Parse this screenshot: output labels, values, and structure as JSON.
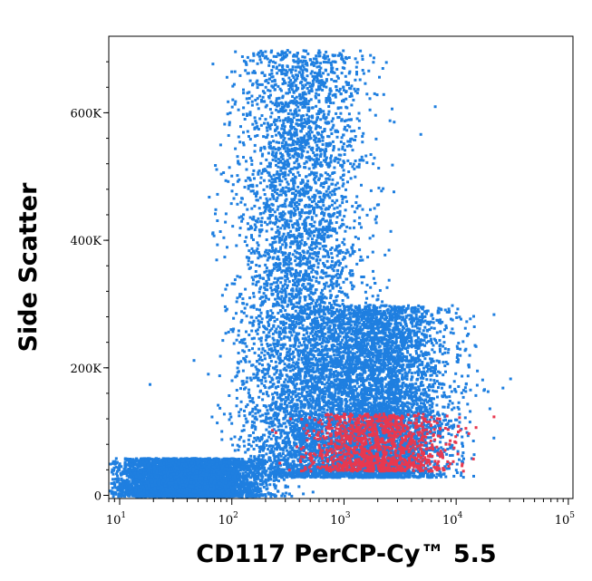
{
  "chart_data": {
    "type": "scatter",
    "title": "",
    "xlabel": "CD117 PerCP-Cy™ 5.5",
    "ylabel": "Side Scatter",
    "x_scale": "log",
    "xlim": [
      8,
      110000
    ],
    "ylim": [
      -5000,
      720000
    ],
    "x_ticks": [
      {
        "base": "10",
        "exp": "1",
        "value": 10
      },
      {
        "base": "10",
        "exp": "2",
        "value": 100
      },
      {
        "base": "10",
        "exp": "3",
        "value": 1000
      },
      {
        "base": "10",
        "exp": "4",
        "value": 10000
      },
      {
        "base": "10",
        "exp": "5",
        "value": 100000
      }
    ],
    "y_ticks": [
      {
        "label": "0",
        "value": 0
      },
      {
        "label": "200K",
        "value": 200000
      },
      {
        "label": "400K",
        "value": 400000
      },
      {
        "label": "600K",
        "value": 600000
      }
    ],
    "grid": false,
    "colors": {
      "main_population": "#1f7fe0",
      "gated_population": "#e8384f"
    },
    "series": [
      {
        "population": "main",
        "color": "#1f7fe0",
        "regions": [
          {
            "x_range": [
              60,
              900
            ],
            "y_range": [
              30000,
              700000
            ],
            "x_peak": 400,
            "description_level": "dense"
          },
          {
            "x_range": [
              300,
              6000
            ],
            "y_range": [
              30000,
              300000
            ],
            "x_peak": 2000,
            "description_level": "dense"
          },
          {
            "x_range": [
              10,
              200
            ],
            "y_range": [
              0,
              60000
            ],
            "x_peak": 40,
            "description_level": "dense"
          }
        ]
      },
      {
        "population": "gated",
        "color": "#e8384f",
        "regions": [
          {
            "x_range": [
              300,
              6000
            ],
            "y_range": [
              40000,
              130000
            ],
            "x_peak": 2000,
            "description_level": "moderate"
          }
        ]
      }
    ]
  }
}
